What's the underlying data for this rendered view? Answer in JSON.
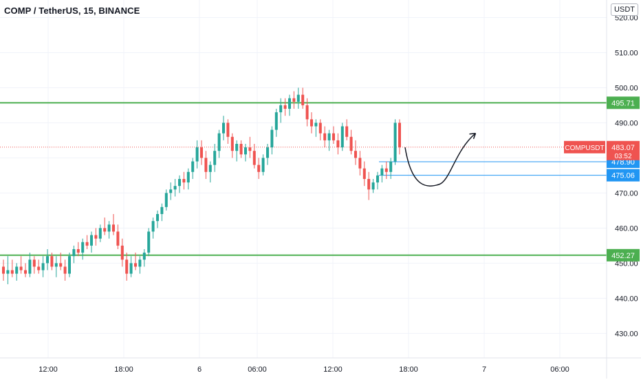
{
  "header": {
    "title": "COMP / TetherUS, 15, BINANCE",
    "currency": "USDT"
  },
  "colors": {
    "up": "#26a69a",
    "down": "#ef5350",
    "hline": "#4caf50",
    "range": "#2196f3",
    "price": "#ef5350",
    "grid": "#f0f3fa",
    "axis_text": "#131722"
  },
  "chart_data": {
    "type": "candlestick",
    "title": "COMP / TetherUS, 15, BINANCE",
    "ylim": [
      423,
      525
    ],
    "y_ticks": [
      430,
      440,
      450,
      460,
      470,
      480,
      490,
      500,
      510,
      520
    ],
    "y_tick_labels": [
      "430.00",
      "440.00",
      "450.00",
      "460.00",
      "470.00",
      "480.00",
      "490.00",
      "500.00",
      "510.00",
      "520.00"
    ],
    "x_ticks": [
      "12:00",
      "18:00",
      "6",
      "06:00",
      "12:00",
      "18:00",
      "7",
      "06:00"
    ],
    "horizontal_levels": [
      {
        "label": "495.71",
        "value": 495.71
      },
      {
        "label": "452.27",
        "value": 452.27
      }
    ],
    "range_levels": [
      {
        "label": "478.90",
        "value": 478.9
      },
      {
        "label": "475.06",
        "value": 475.06
      }
    ],
    "current_price": {
      "symbol": "COMPUSDT",
      "value": "483.07",
      "countdown": "03:52",
      "numeric": 483.07
    },
    "projection": {
      "description": "",
      "points": [
        [
          483,
          0
        ],
        [
          475,
          8
        ],
        [
          474,
          12
        ],
        [
          487,
          25
        ]
      ]
    },
    "ohlc": [
      [
        449,
        451,
        445,
        447
      ],
      [
        447,
        452,
        444,
        448
      ],
      [
        448,
        451,
        446,
        447
      ],
      [
        447,
        450,
        445,
        449
      ],
      [
        449,
        452,
        447,
        448
      ],
      [
        448,
        450,
        446,
        447
      ],
      [
        447,
        453,
        446,
        451
      ],
      [
        451,
        452,
        447,
        449
      ],
      [
        449,
        451,
        447,
        448
      ],
      [
        448,
        452,
        446,
        450
      ],
      [
        450,
        454,
        448,
        452
      ],
      [
        452,
        453,
        448,
        449
      ],
      [
        449,
        452,
        446,
        450
      ],
      [
        450,
        453,
        448,
        449
      ],
      [
        449,
        451,
        445,
        447
      ],
      [
        447,
        453,
        446,
        452
      ],
      [
        452,
        455,
        450,
        454
      ],
      [
        454,
        456,
        452,
        453
      ],
      [
        453,
        457,
        451,
        456
      ],
      [
        456,
        458,
        454,
        455
      ],
      [
        455,
        459,
        453,
        458
      ],
      [
        458,
        460,
        455,
        457
      ],
      [
        457,
        461,
        456,
        460
      ],
      [
        460,
        463,
        458,
        459
      ],
      [
        459,
        462,
        457,
        461
      ],
      [
        461,
        464,
        458,
        459
      ],
      [
        459,
        461,
        454,
        455
      ],
      [
        455,
        457,
        449,
        451
      ],
      [
        451,
        453,
        445,
        447
      ],
      [
        447,
        452,
        446,
        450
      ],
      [
        450,
        453,
        448,
        449
      ],
      [
        449,
        452,
        447,
        451
      ],
      [
        451,
        454,
        449,
        453
      ],
      [
        453,
        460,
        452,
        459
      ],
      [
        459,
        463,
        457,
        462
      ],
      [
        462,
        465,
        460,
        464
      ],
      [
        464,
        467,
        462,
        466
      ],
      [
        466,
        471,
        465,
        470
      ],
      [
        470,
        473,
        468,
        471
      ],
      [
        471,
        474,
        469,
        472
      ],
      [
        472,
        475,
        470,
        474
      ],
      [
        474,
        476,
        471,
        473
      ],
      [
        473,
        477,
        471,
        476
      ],
      [
        476,
        480,
        474,
        479
      ],
      [
        479,
        485,
        477,
        483
      ],
      [
        483,
        485,
        478,
        480
      ],
      [
        480,
        482,
        474,
        476
      ],
      [
        476,
        479,
        473,
        478
      ],
      [
        478,
        484,
        476,
        482
      ],
      [
        482,
        488,
        480,
        487
      ],
      [
        487,
        492,
        485,
        490
      ],
      [
        490,
        491,
        484,
        486
      ],
      [
        486,
        487,
        480,
        482
      ],
      [
        482,
        485,
        479,
        484
      ],
      [
        484,
        485,
        480,
        481
      ],
      [
        481,
        484,
        479,
        483
      ],
      [
        483,
        486,
        480,
        482
      ],
      [
        482,
        484,
        477,
        478
      ],
      [
        478,
        480,
        474,
        476
      ],
      [
        476,
        481,
        475,
        480
      ],
      [
        480,
        484,
        478,
        483
      ],
      [
        483,
        489,
        481,
        488
      ],
      [
        488,
        494,
        486,
        493
      ],
      [
        493,
        497,
        490,
        495
      ],
      [
        495,
        497,
        492,
        494
      ],
      [
        494,
        498,
        492,
        497
      ],
      [
        497,
        499,
        494,
        496
      ],
      [
        496,
        500,
        494,
        498
      ],
      [
        498,
        500,
        494,
        495
      ],
      [
        495,
        497,
        489,
        491
      ],
      [
        491,
        493,
        487,
        489
      ],
      [
        489,
        491,
        486,
        490
      ],
      [
        490,
        491,
        485,
        487
      ],
      [
        487,
        489,
        483,
        485
      ],
      [
        485,
        488,
        482,
        487
      ],
      [
        487,
        489,
        484,
        485
      ],
      [
        485,
        487,
        481,
        483
      ],
      [
        483,
        490,
        482,
        489
      ],
      [
        489,
        491,
        485,
        486
      ],
      [
        486,
        488,
        481,
        482
      ],
      [
        482,
        485,
        478,
        480
      ],
      [
        480,
        482,
        475,
        477
      ],
      [
        477,
        479,
        472,
        474
      ],
      [
        474,
        476,
        468,
        471
      ],
      [
        471,
        474,
        470,
        473
      ],
      [
        473,
        476,
        471,
        475
      ],
      [
        475,
        478,
        473,
        477
      ],
      [
        477,
        479,
        474,
        476
      ],
      [
        476,
        480,
        474,
        479
      ],
      [
        479,
        491,
        478,
        490
      ],
      [
        490,
        491,
        481,
        483
      ]
    ]
  }
}
